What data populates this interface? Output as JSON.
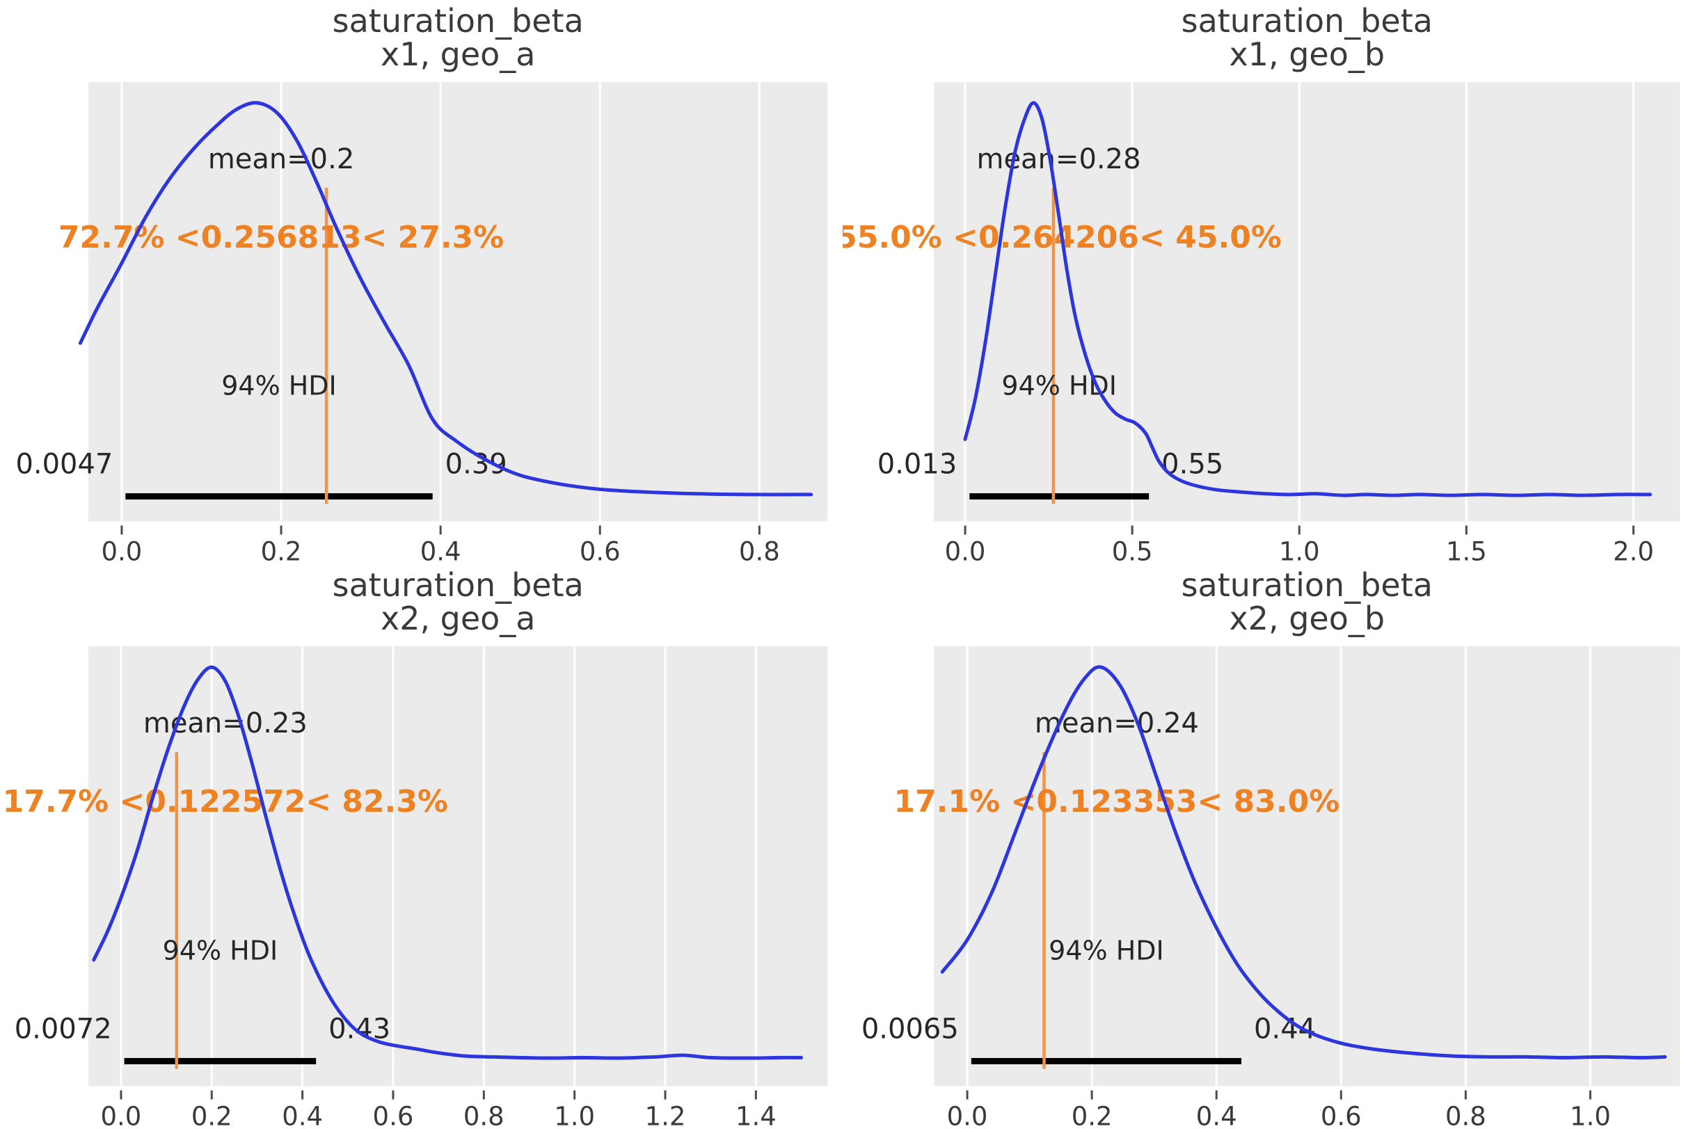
{
  "figure": {
    "kind": "arviz-plot-posterior",
    "background": "#ffffff"
  },
  "colors": {
    "plot_bg": "#ebebeb",
    "gridline": "#ffffff",
    "kde_curve": "#2d35dc",
    "ref_line": "#f0944c",
    "ref_text": "#ee8122",
    "hdi_bar": "#000000",
    "title_text": "#3a3a3a",
    "annotation_text": "#262626",
    "tick_text": "#3a3a3a",
    "tick_mark": "#4d4d4d"
  },
  "chart_data": {
    "type": "kde",
    "layout": "2x2-grid",
    "hdi_probability": "94%",
    "panels": [
      {
        "id": "x1_geo_a",
        "title": [
          "saturation_beta",
          "x1, geo_a"
        ],
        "mean": {
          "value": 0.2,
          "label": "mean=0.2"
        },
        "ref_val": {
          "value": 0.256813,
          "label": "72.7% <0.256813< 27.3%",
          "pct_below": "72.7%",
          "pct_above": "27.3%"
        },
        "hdi": {
          "label": "94% HDI",
          "lo": 0.0047,
          "hi": 0.39,
          "lo_label": "0.0047",
          "hi_label": "0.39"
        },
        "x_axis": {
          "range": [
            -0.0419,
            0.8857
          ],
          "ticks": [
            0.0,
            0.2,
            0.4,
            0.6,
            0.8
          ],
          "tick_labels": [
            "0.0",
            "0.2",
            "0.4",
            "0.6",
            "0.8"
          ]
        },
        "curve": [
          [
            -0.052,
            0.4
          ],
          [
            -0.03,
            0.49
          ],
          [
            0.0,
            0.6
          ],
          [
            0.03,
            0.715
          ],
          [
            0.06,
            0.81
          ],
          [
            0.09,
            0.885
          ],
          [
            0.12,
            0.945
          ],
          [
            0.145,
            0.985
          ],
          [
            0.17,
            1.0
          ],
          [
            0.195,
            0.975
          ],
          [
            0.22,
            0.905
          ],
          [
            0.245,
            0.8
          ],
          [
            0.27,
            0.685
          ],
          [
            0.3,
            0.56
          ],
          [
            0.33,
            0.45
          ],
          [
            0.36,
            0.345
          ],
          [
            0.39,
            0.21
          ],
          [
            0.42,
            0.155
          ],
          [
            0.46,
            0.105
          ],
          [
            0.5,
            0.07
          ],
          [
            0.55,
            0.048
          ],
          [
            0.6,
            0.035
          ],
          [
            0.66,
            0.028
          ],
          [
            0.72,
            0.024
          ],
          [
            0.79,
            0.022
          ],
          [
            0.865,
            0.022
          ]
        ]
      },
      {
        "id": "x1_geo_b",
        "title": [
          "saturation_beta",
          "x1, geo_b"
        ],
        "mean": {
          "value": 0.28,
          "label": "mean=0.28"
        },
        "ref_val": {
          "value": 0.264206,
          "label": "55.0% <0.264206< 45.0%",
          "pct_below": "55.0%",
          "pct_above": "45.0%"
        },
        "hdi": {
          "label": "94% HDI",
          "lo": 0.013,
          "hi": 0.55,
          "lo_label": "0.013",
          "hi_label": "0.55"
        },
        "x_axis": {
          "range": [
            -0.0937,
            2.1396
          ],
          "ticks": [
            0.0,
            0.5,
            1.0,
            1.5,
            2.0
          ],
          "tick_labels": [
            "0.0",
            "0.5",
            "1.0",
            "1.5",
            "2.0"
          ]
        },
        "curve": [
          [
            0.0,
            0.16
          ],
          [
            0.03,
            0.26
          ],
          [
            0.06,
            0.4
          ],
          [
            0.09,
            0.57
          ],
          [
            0.12,
            0.74
          ],
          [
            0.15,
            0.88
          ],
          [
            0.18,
            0.965
          ],
          [
            0.205,
            1.0
          ],
          [
            0.23,
            0.96
          ],
          [
            0.255,
            0.855
          ],
          [
            0.28,
            0.72
          ],
          [
            0.305,
            0.58
          ],
          [
            0.33,
            0.465
          ],
          [
            0.36,
            0.37
          ],
          [
            0.39,
            0.3
          ],
          [
            0.42,
            0.255
          ],
          [
            0.45,
            0.225
          ],
          [
            0.48,
            0.21
          ],
          [
            0.51,
            0.2
          ],
          [
            0.54,
            0.175
          ],
          [
            0.56,
            0.14
          ],
          [
            0.58,
            0.105
          ],
          [
            0.61,
            0.075
          ],
          [
            0.65,
            0.055
          ],
          [
            0.7,
            0.042
          ],
          [
            0.76,
            0.033
          ],
          [
            0.83,
            0.028
          ],
          [
            0.9,
            0.024
          ],
          [
            0.97,
            0.022
          ],
          [
            1.05,
            0.024
          ],
          [
            1.13,
            0.02
          ],
          [
            1.2,
            0.022
          ],
          [
            1.28,
            0.02
          ],
          [
            1.36,
            0.022
          ],
          [
            1.45,
            0.02
          ],
          [
            1.55,
            0.022
          ],
          [
            1.65,
            0.02
          ],
          [
            1.75,
            0.022
          ],
          [
            1.85,
            0.02
          ],
          [
            1.95,
            0.022
          ],
          [
            2.05,
            0.022
          ]
        ]
      },
      {
        "id": "x2_geo_a",
        "title": [
          "saturation_beta",
          "x2, geo_a"
        ],
        "mean": {
          "value": 0.23,
          "label": "mean=0.23"
        },
        "ref_val": {
          "value": 0.122572,
          "label": "17.7% <0.122572< 82.3%",
          "pct_below": "17.7%",
          "pct_above": "82.3%"
        },
        "hdi": {
          "label": "94% HDI",
          "lo": 0.0072,
          "hi": 0.43,
          "lo_label": "0.0072",
          "hi_label": "0.43"
        },
        "x_axis": {
          "range": [
            -0.0721,
            1.5583
          ],
          "ticks": [
            0.0,
            0.2,
            0.4,
            0.6,
            0.8,
            1.0,
            1.2,
            1.4
          ],
          "tick_labels": [
            "0.0",
            "0.2",
            "0.4",
            "0.6",
            "0.8",
            "1.0",
            "1.2",
            "1.4"
          ]
        },
        "curve": [
          [
            -0.06,
            0.27
          ],
          [
            -0.03,
            0.34
          ],
          [
            0.0,
            0.425
          ],
          [
            0.035,
            0.54
          ],
          [
            0.07,
            0.675
          ],
          [
            0.105,
            0.8
          ],
          [
            0.14,
            0.905
          ],
          [
            0.17,
            0.97
          ],
          [
            0.2,
            1.0
          ],
          [
            0.23,
            0.965
          ],
          [
            0.26,
            0.875
          ],
          [
            0.29,
            0.755
          ],
          [
            0.32,
            0.625
          ],
          [
            0.35,
            0.5
          ],
          [
            0.38,
            0.39
          ],
          [
            0.41,
            0.295
          ],
          [
            0.44,
            0.22
          ],
          [
            0.47,
            0.16
          ],
          [
            0.5,
            0.115
          ],
          [
            0.53,
            0.085
          ],
          [
            0.57,
            0.065
          ],
          [
            0.61,
            0.055
          ],
          [
            0.65,
            0.048
          ],
          [
            0.7,
            0.038
          ],
          [
            0.76,
            0.03
          ],
          [
            0.82,
            0.028
          ],
          [
            0.88,
            0.026
          ],
          [
            0.95,
            0.025
          ],
          [
            1.02,
            0.026
          ],
          [
            1.1,
            0.025
          ],
          [
            1.18,
            0.028
          ],
          [
            1.24,
            0.032
          ],
          [
            1.3,
            0.026
          ],
          [
            1.38,
            0.025
          ],
          [
            1.45,
            0.026
          ],
          [
            1.5,
            0.026
          ]
        ]
      },
      {
        "id": "x2_geo_b",
        "title": [
          "saturation_beta",
          "x2, geo_b"
        ],
        "mean": {
          "value": 0.24,
          "label": "mean=0.24"
        },
        "ref_val": {
          "value": 0.123353,
          "label": "17.1% <0.123353< 83.0%",
          "pct_below": "17.1%",
          "pct_above": "83.0%"
        },
        "hdi": {
          "label": "94% HDI",
          "lo": 0.0065,
          "hi": 0.44,
          "lo_label": "0.0065",
          "hi_label": "0.44"
        },
        "x_axis": {
          "range": [
            -0.0536,
            1.1441
          ],
          "ticks": [
            0.0,
            0.2,
            0.4,
            0.6,
            0.8,
            1.0
          ],
          "tick_labels": [
            "0.0",
            "0.2",
            "0.4",
            "0.6",
            "0.8",
            "1.0"
          ]
        },
        "curve": [
          [
            -0.04,
            0.24
          ],
          [
            0.0,
            0.32
          ],
          [
            0.04,
            0.44
          ],
          [
            0.08,
            0.6
          ],
          [
            0.12,
            0.76
          ],
          [
            0.16,
            0.9
          ],
          [
            0.19,
            0.975
          ],
          [
            0.215,
            1.0
          ],
          [
            0.245,
            0.955
          ],
          [
            0.275,
            0.855
          ],
          [
            0.305,
            0.72
          ],
          [
            0.335,
            0.585
          ],
          [
            0.365,
            0.465
          ],
          [
            0.4,
            0.35
          ],
          [
            0.435,
            0.255
          ],
          [
            0.47,
            0.185
          ],
          [
            0.5,
            0.14
          ],
          [
            0.53,
            0.105
          ],
          [
            0.56,
            0.082
          ],
          [
            0.6,
            0.062
          ],
          [
            0.64,
            0.05
          ],
          [
            0.68,
            0.042
          ],
          [
            0.73,
            0.035
          ],
          [
            0.78,
            0.03
          ],
          [
            0.84,
            0.028
          ],
          [
            0.9,
            0.028
          ],
          [
            0.96,
            0.026
          ],
          [
            1.02,
            0.028
          ],
          [
            1.08,
            0.026
          ],
          [
            1.12,
            0.028
          ]
        ]
      }
    ]
  }
}
